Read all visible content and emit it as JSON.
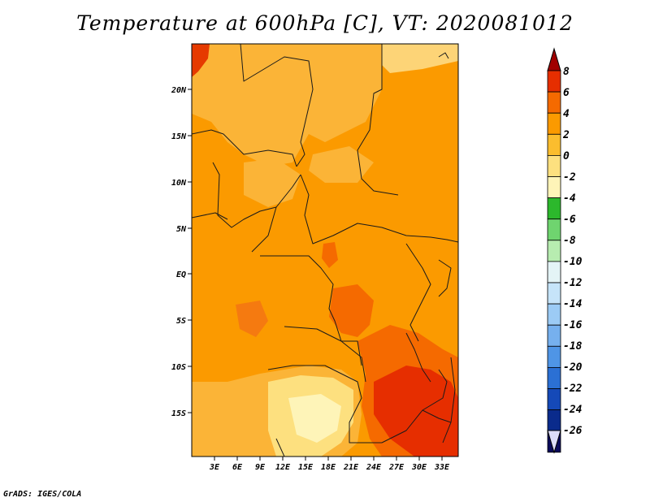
{
  "title": "Temperature at 600hPa [C], VT: 2020081012",
  "credit": "GrADS: IGES/COLA",
  "map": {
    "lat_labels": [
      "20N",
      "15N",
      "10N",
      "5N",
      "EQ",
      "5S",
      "10S",
      "15S"
    ],
    "lon_labels": [
      "3E",
      "6E",
      "9E",
      "12E",
      "15E",
      "18E",
      "21E",
      "24E",
      "27E",
      "30E",
      "33E"
    ]
  },
  "colorbar": {
    "levels": [
      "8",
      "6",
      "4",
      "2",
      "0",
      "-2",
      "-4",
      "-6",
      "-8",
      "-10",
      "-12",
      "-14",
      "-16",
      "-18",
      "-20",
      "-22",
      "-24",
      "-26"
    ],
    "colors": [
      "#a00000",
      "#e62e00",
      "#f56a00",
      "#fb9a00",
      "#fbbd2e",
      "#fde07f",
      "#fef4b8",
      "#2cb82c",
      "#6fd46f",
      "#b7ecb0",
      "#e4f4f6",
      "#c6e4f9",
      "#9ccbf5",
      "#76b0ee",
      "#4f95e6",
      "#2b70d4",
      "#1549b8",
      "#0a2b8c",
      "#0a0a5a",
      "#dcdcf8"
    ]
  }
}
